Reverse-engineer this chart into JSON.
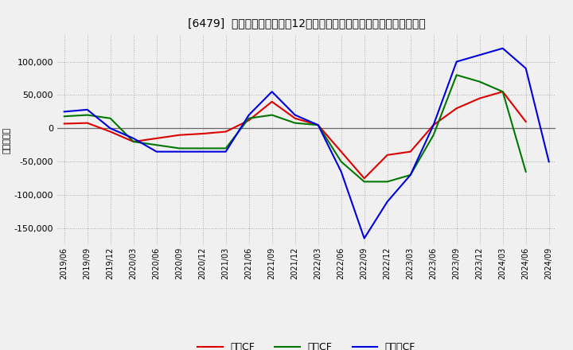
{
  "title": "[6479]  キャッシュフローの12か月移動合計の対前年同期増減額の推移",
  "ylabel": "（百万円）",
  "background_color": "#f0f0f0",
  "plot_bg_color": "#f0f0f0",
  "grid_color": "#aaaaaa",
  "ylim": [
    -175000,
    140000
  ],
  "yticks": [
    -150000,
    -100000,
    -50000,
    0,
    50000,
    100000
  ],
  "dates": [
    "2019/06",
    "2019/09",
    "2019/12",
    "2020/03",
    "2020/06",
    "2020/09",
    "2020/12",
    "2021/03",
    "2021/06",
    "2021/09",
    "2021/12",
    "2022/03",
    "2022/06",
    "2022/09",
    "2022/12",
    "2023/03",
    "2023/06",
    "2023/09",
    "2023/12",
    "2024/03",
    "2024/06",
    "2024/09"
  ],
  "eigyo_cf": [
    7000,
    8000,
    -5000,
    -20000,
    -15000,
    -10000,
    -8000,
    -5000,
    12000,
    40000,
    15000,
    5000,
    -35000,
    -75000,
    -40000,
    -35000,
    5000,
    30000,
    45000,
    55000,
    10000,
    null
  ],
  "toshi_cf": [
    18000,
    20000,
    15000,
    -20000,
    -25000,
    -30000,
    -30000,
    -30000,
    15000,
    20000,
    8000,
    5000,
    -50000,
    -80000,
    -80000,
    -70000,
    -10000,
    80000,
    70000,
    55000,
    -65000,
    null
  ],
  "free_cf": [
    25000,
    28000,
    0,
    -15000,
    -35000,
    -35000,
    -35000,
    -35000,
    20000,
    55000,
    20000,
    5000,
    -65000,
    -165000,
    -110000,
    -70000,
    5000,
    100000,
    110000,
    120000,
    90000,
    -50000
  ],
  "eigyo_color": "#dd0000",
  "toshi_color": "#007700",
  "free_color": "#0000dd",
  "legend_labels": [
    "営業CF",
    "投資CF",
    "フリーCF"
  ]
}
